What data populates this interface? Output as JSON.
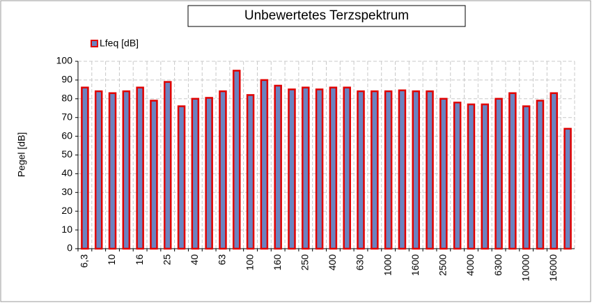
{
  "chart_data": {
    "type": "bar",
    "title": "Unbewertetes Terzspektrum",
    "y_label": "Pegel [dB]",
    "categories": [
      "6,3",
      null,
      "10",
      null,
      "16",
      null,
      "25",
      null,
      "40",
      null,
      "63",
      null,
      "100",
      null,
      "160",
      null,
      "250",
      null,
      "400",
      null,
      "630",
      null,
      "1000",
      null,
      "1600",
      null,
      "2500",
      null,
      "4000",
      null,
      "6300",
      null,
      "10000",
      null,
      "16000",
      null
    ],
    "series": [
      {
        "name": "Lfeq [dB]",
        "color": "#6b83c0",
        "values": [
          86,
          84,
          83,
          84,
          86,
          79,
          89,
          76,
          80,
          80.5,
          84,
          95,
          82,
          90,
          87,
          85,
          86,
          85,
          86,
          86,
          84,
          84,
          84,
          84.5,
          84,
          84,
          80,
          78,
          77,
          77,
          80,
          83,
          76,
          79,
          83,
          64
        ]
      }
    ],
    "edge_color": "#e00000",
    "ylim": [
      0,
      100
    ],
    "yticks": [
      0,
      10,
      20,
      30,
      40,
      50,
      60,
      70,
      80,
      90,
      100
    ],
    "grid": true,
    "legend": "top-left"
  }
}
